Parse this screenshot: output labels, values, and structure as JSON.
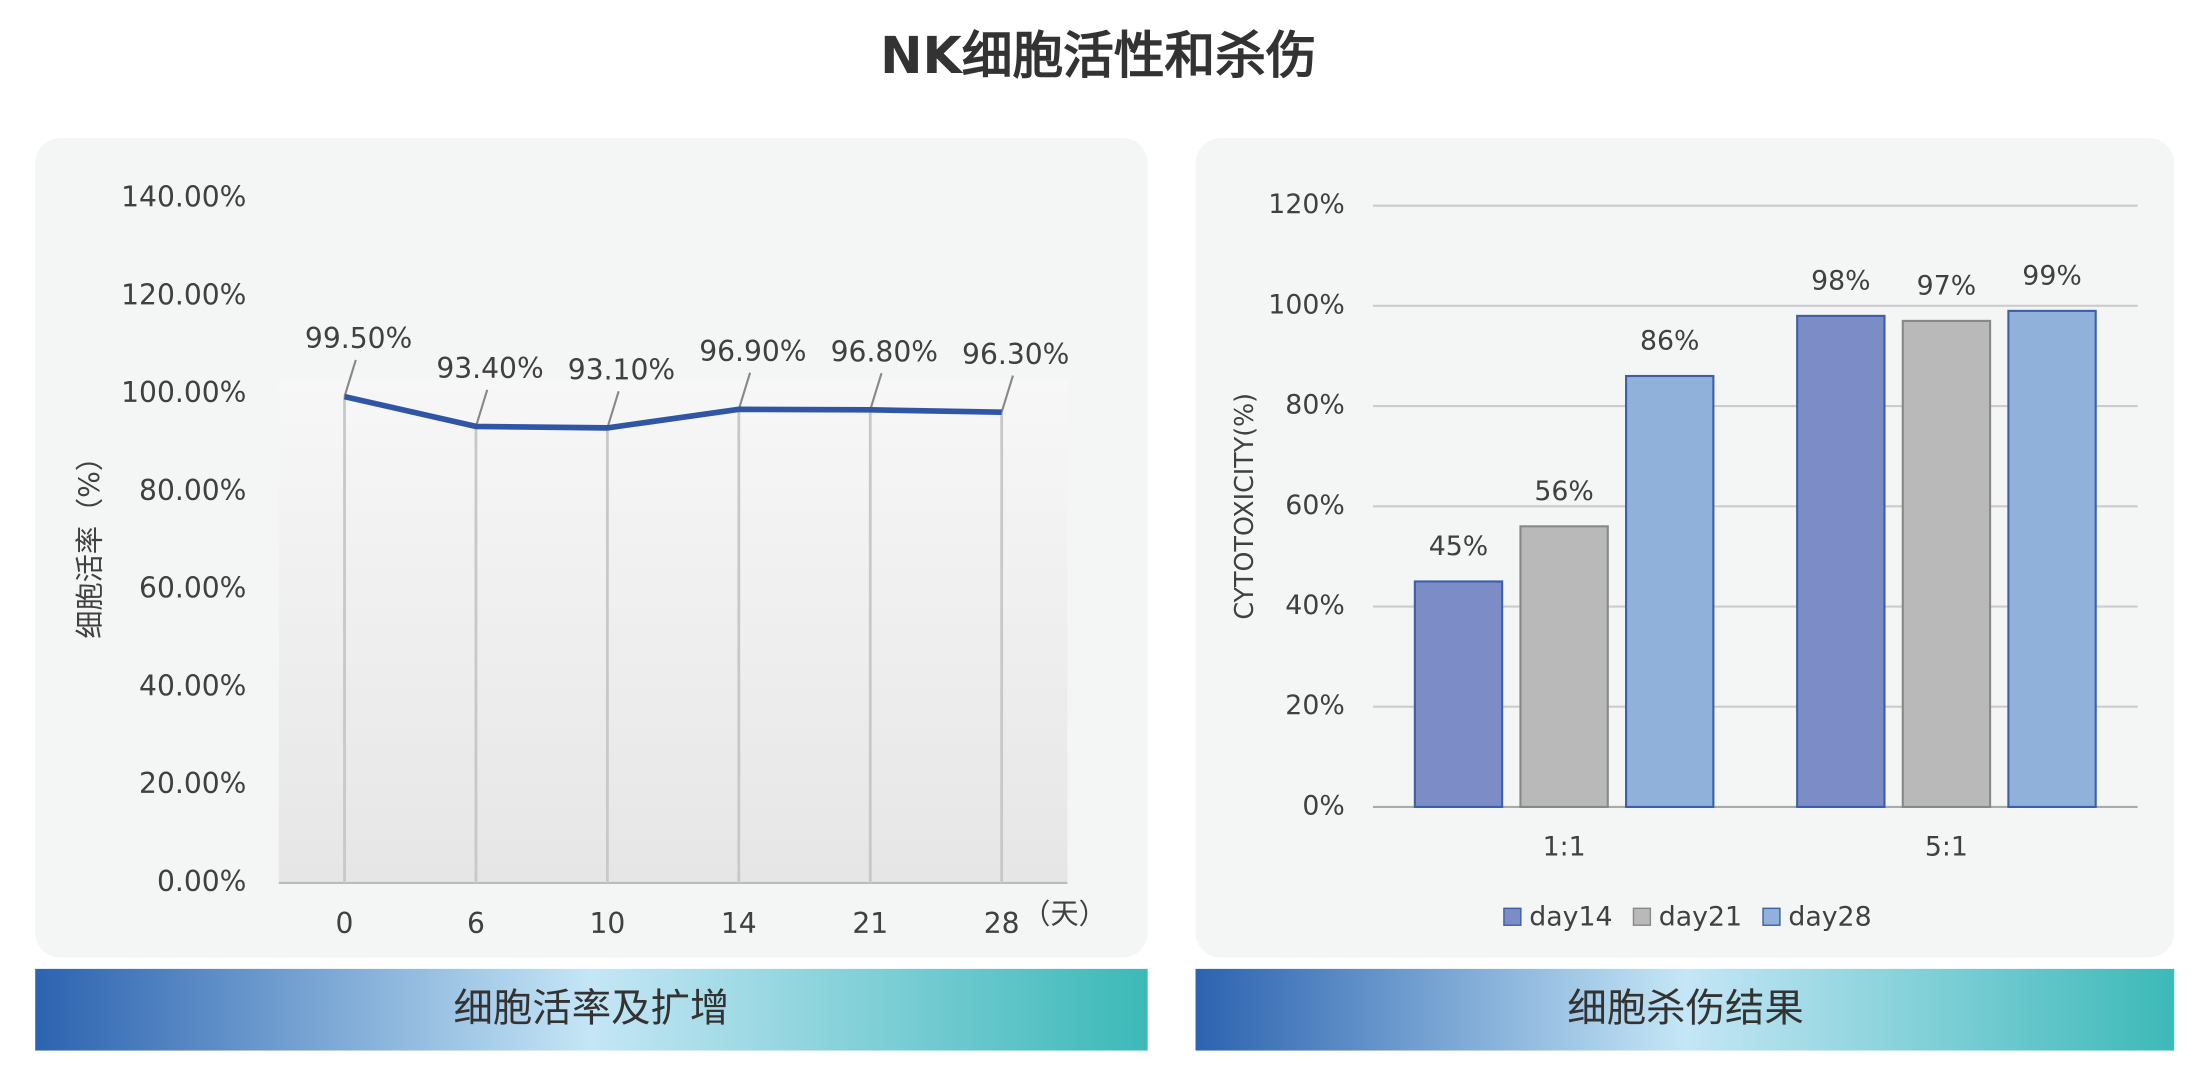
{
  "title": "NK细胞活性和杀伤",
  "chart_data": [
    {
      "type": "line",
      "caption": "细胞活率及扩增",
      "y_label": "细胞活率（%）",
      "x_unit": "（天）",
      "categories": [
        "0",
        "6",
        "10",
        "14",
        "21",
        "28"
      ],
      "values": [
        99.5,
        93.4,
        93.1,
        96.9,
        96.8,
        96.3
      ],
      "value_labels": [
        "99.50%",
        "93.40%",
        "93.10%",
        "96.90%",
        "96.80%",
        "96.30%"
      ],
      "color": "#2f55a4",
      "ylim": [
        0,
        140
      ],
      "yticks": [
        {
          "value": 0,
          "label": "0.00%"
        },
        {
          "value": 20,
          "label": "20.00%"
        },
        {
          "value": 40,
          "label": "40.00%"
        },
        {
          "value": 60,
          "label": "60.00%"
        },
        {
          "value": 80,
          "label": "80.00%"
        },
        {
          "value": 100,
          "label": "100.00%"
        },
        {
          "value": 120,
          "label": "120.00%"
        },
        {
          "value": 140,
          "label": "140.00%"
        }
      ]
    },
    {
      "type": "bar",
      "caption": "细胞杀伤结果",
      "y_label": "CYTOTOXICITY(%)",
      "legend": "bottom",
      "grid": true,
      "categories": [
        "1:1",
        "5:1"
      ],
      "series": [
        {
          "name": "day14",
          "color": "#7b8cc6",
          "values": [
            45,
            98
          ],
          "value_labels": [
            "45%",
            "98%"
          ]
        },
        {
          "name": "day21",
          "color": "#b9b9b9",
          "values": [
            56,
            97
          ],
          "value_labels": [
            "56%",
            "97%"
          ]
        },
        {
          "name": "day28",
          "color": "#8fb1da",
          "values": [
            86,
            99
          ],
          "value_labels": [
            "86%",
            "99%"
          ]
        }
      ],
      "ylim": [
        0,
        120
      ],
      "yticks": [
        {
          "value": 0,
          "label": "0%"
        },
        {
          "value": 20,
          "label": "20%"
        },
        {
          "value": 40,
          "label": "40%"
        },
        {
          "value": 60,
          "label": "60%"
        },
        {
          "value": 80,
          "label": "80%"
        },
        {
          "value": 100,
          "label": "100%"
        },
        {
          "value": 120,
          "label": "120%"
        }
      ]
    }
  ]
}
